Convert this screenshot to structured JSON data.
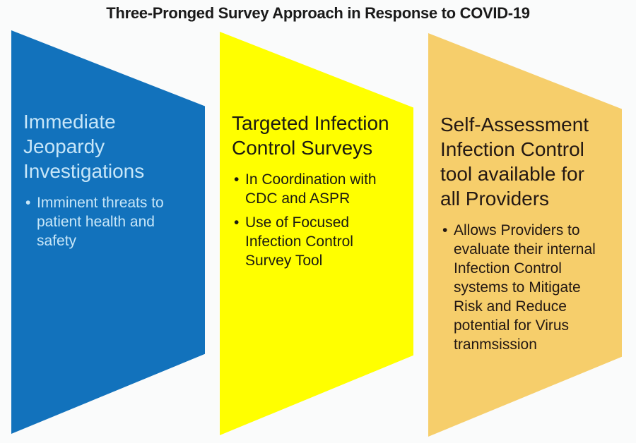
{
  "title": "Three-Pronged Survey Approach in Response to COVID-19",
  "bullet_marker": "•",
  "panels": [
    {
      "name": "immediate-jeopardy-investigations",
      "fill_color": "#1272bc",
      "text_color": "#c7e6f8",
      "heading": "Immediate\nJeopardy\nInvestigations",
      "bullets": [
        "Imminent threats to\npatient health and\nsafety"
      ]
    },
    {
      "name": "targeted-infection-control-surveys",
      "fill_color": "#ffff00",
      "text_color": "#1b1a12",
      "heading": "Targeted Infection\nControl Surveys",
      "bullets": [
        "In Coordination with\nCDC and ASPR",
        "Use of Focused\nInfection Control\nSurvey Tool"
      ]
    },
    {
      "name": "self-assessment-infection-control-tool",
      "fill_color": "#f6ce6b",
      "text_color": "#231813",
      "heading": "Self-Assessment\nInfection Control\ntool available for\nall Providers",
      "bullets": [
        "Allows Providers to\nevaluate their internal\nInfection Control\nsystems to Mitigate\nRisk and Reduce\npotential for Virus\ntranmsission"
      ]
    }
  ]
}
